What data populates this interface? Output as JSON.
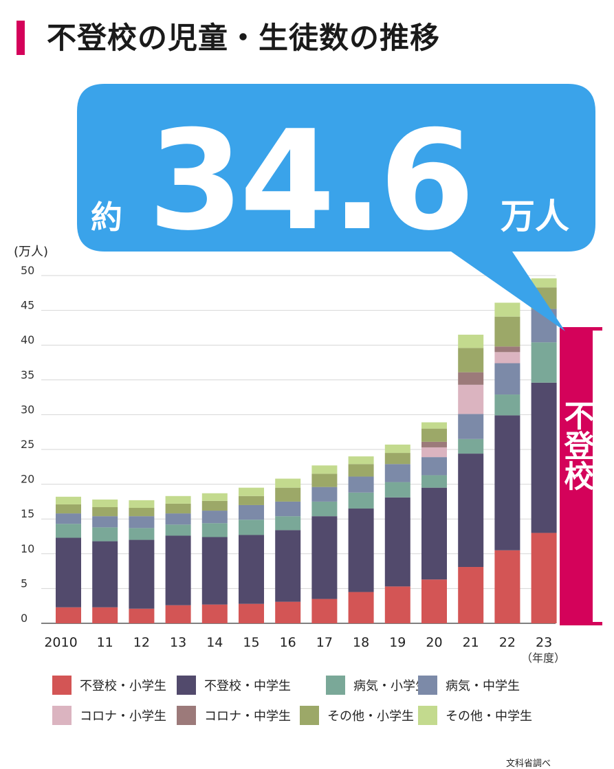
{
  "title": "不登校の児童・生徒数の推移",
  "callout": {
    "prefix": "約",
    "value": "34.6",
    "unit": "万人"
  },
  "bracket_label": "不登校",
  "source": "文科省調べ",
  "colors": {
    "accent": "#d4025a",
    "bubble": "#3aa3ea",
    "series": [
      "#d35555",
      "#524a6c",
      "#7aa898",
      "#7c8aa8",
      "#dbb4c0",
      "#9c7a7a",
      "#9ca868",
      "#c3da8e"
    ]
  },
  "chart_data": {
    "type": "bar",
    "stacked": true,
    "categories": [
      "2010",
      "11",
      "12",
      "13",
      "14",
      "15",
      "16",
      "17",
      "18",
      "19",
      "20",
      "21",
      "22",
      "23"
    ],
    "x_unit_label": "（年度）",
    "ylabel": "(万人)",
    "ylim": [
      0,
      50
    ],
    "yticks": [
      0,
      5,
      10,
      15,
      20,
      25,
      30,
      35,
      40,
      45,
      50
    ],
    "grid": true,
    "legend_position": "bottom",
    "series": [
      {
        "name": "不登校・小学生",
        "values": [
          2.3,
          2.3,
          2.1,
          2.6,
          2.7,
          2.8,
          3.1,
          3.5,
          4.5,
          5.3,
          6.3,
          8.1,
          10.5,
          13.0
        ]
      },
      {
        "name": "不登校・中学生",
        "values": [
          10.0,
          9.5,
          9.9,
          10.0,
          9.7,
          9.9,
          10.3,
          11.9,
          12.0,
          12.8,
          13.2,
          16.3,
          19.4,
          21.6
        ]
      },
      {
        "name": "病気・小学生",
        "values": [
          2.0,
          2.0,
          1.7,
          1.6,
          2.0,
          2.2,
          2.0,
          2.1,
          2.3,
          2.2,
          1.8,
          2.1,
          3.0,
          5.8
        ]
      },
      {
        "name": "病気・中学生",
        "values": [
          1.5,
          1.6,
          1.7,
          1.6,
          1.8,
          2.1,
          2.1,
          2.1,
          2.3,
          2.6,
          2.6,
          3.6,
          4.5,
          4.8
        ]
      },
      {
        "name": "コロナ・小学生",
        "values": [
          0,
          0,
          0,
          0,
          0,
          0,
          0,
          0,
          0,
          0,
          1.4,
          4.2,
          1.6,
          0
        ]
      },
      {
        "name": "コロナ・中学生",
        "values": [
          0,
          0,
          0,
          0,
          0,
          0,
          0,
          0,
          0,
          0,
          0.8,
          1.8,
          0.8,
          0
        ]
      },
      {
        "name": "その他・小学生",
        "values": [
          1.3,
          1.3,
          1.2,
          1.4,
          1.4,
          1.3,
          2.0,
          1.9,
          1.8,
          1.6,
          1.9,
          3.5,
          4.3,
          3.1
        ]
      },
      {
        "name": "その他・中学生",
        "values": [
          1.1,
          1.1,
          1.1,
          1.1,
          1.1,
          1.2,
          1.3,
          1.2,
          1.1,
          1.2,
          0.9,
          1.9,
          2.0,
          1.3
        ]
      }
    ]
  }
}
